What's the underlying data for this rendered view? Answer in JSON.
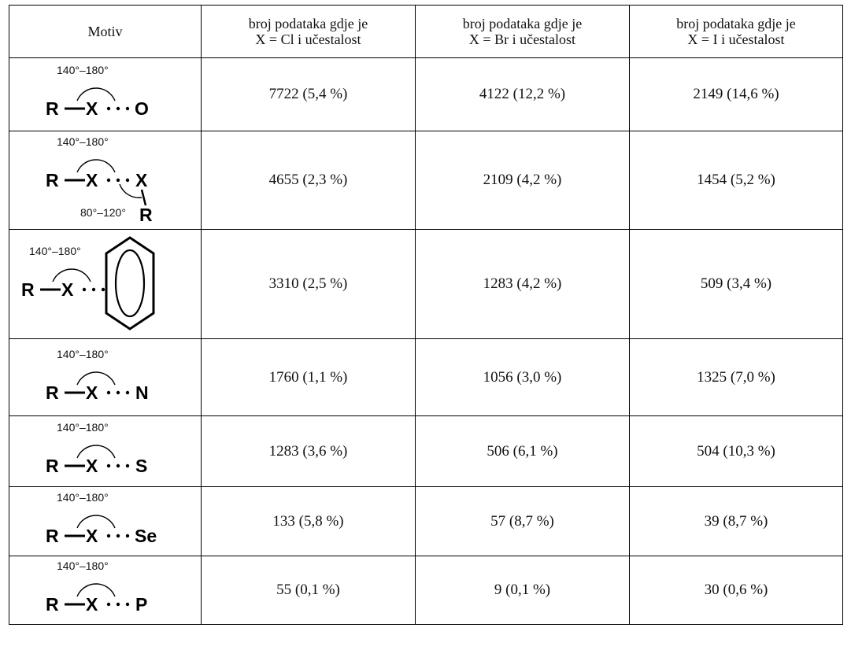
{
  "headers": [
    "Motiv",
    [
      "broj podataka gdje je",
      "X = Cl i učestalost"
    ],
    [
      "broj podataka gdje je",
      "X = Br i učestalost"
    ],
    [
      "broj podataka gdje je",
      "X = I i učestalost"
    ]
  ],
  "motif_labels": {
    "R": "R",
    "X": "X",
    "angle_main": "140°–180°",
    "angle_second": "80°–120°"
  },
  "rows": [
    {
      "acceptor": "O",
      "cl": "7722 (5,4 %)",
      "br": "4122 (12,2 %)",
      "i": "2149 (14,6 %)"
    },
    {
      "acceptor": "X",
      "cl": "4655 (2,3 %)",
      "br": "2109 (4,2 %)",
      "i": "1454 (5,2 %)"
    },
    {
      "acceptor": "benzene-ring",
      "cl": "3310 (2,5 %)",
      "br": "1283 (4,2 %)",
      "i": "509 (3,4 %)"
    },
    {
      "acceptor": "N",
      "cl": "1760 (1,1 %)",
      "br": "1056 (3,0 %)",
      "i": "1325 (7,0 %)"
    },
    {
      "acceptor": "S",
      "cl": "1283 (3,6 %)",
      "br": "506 (6,1 %)",
      "i": "504 (10,3 %)"
    },
    {
      "acceptor": "Se",
      "cl": "133 (5,8 %)",
      "br": "57 (8,7 %)",
      "i": "39 (8,7 %)"
    },
    {
      "acceptor": "P",
      "cl": "55 (0,1 %)",
      "br": "9 (0,1 %)",
      "i": "30 (0,6 %)"
    }
  ]
}
